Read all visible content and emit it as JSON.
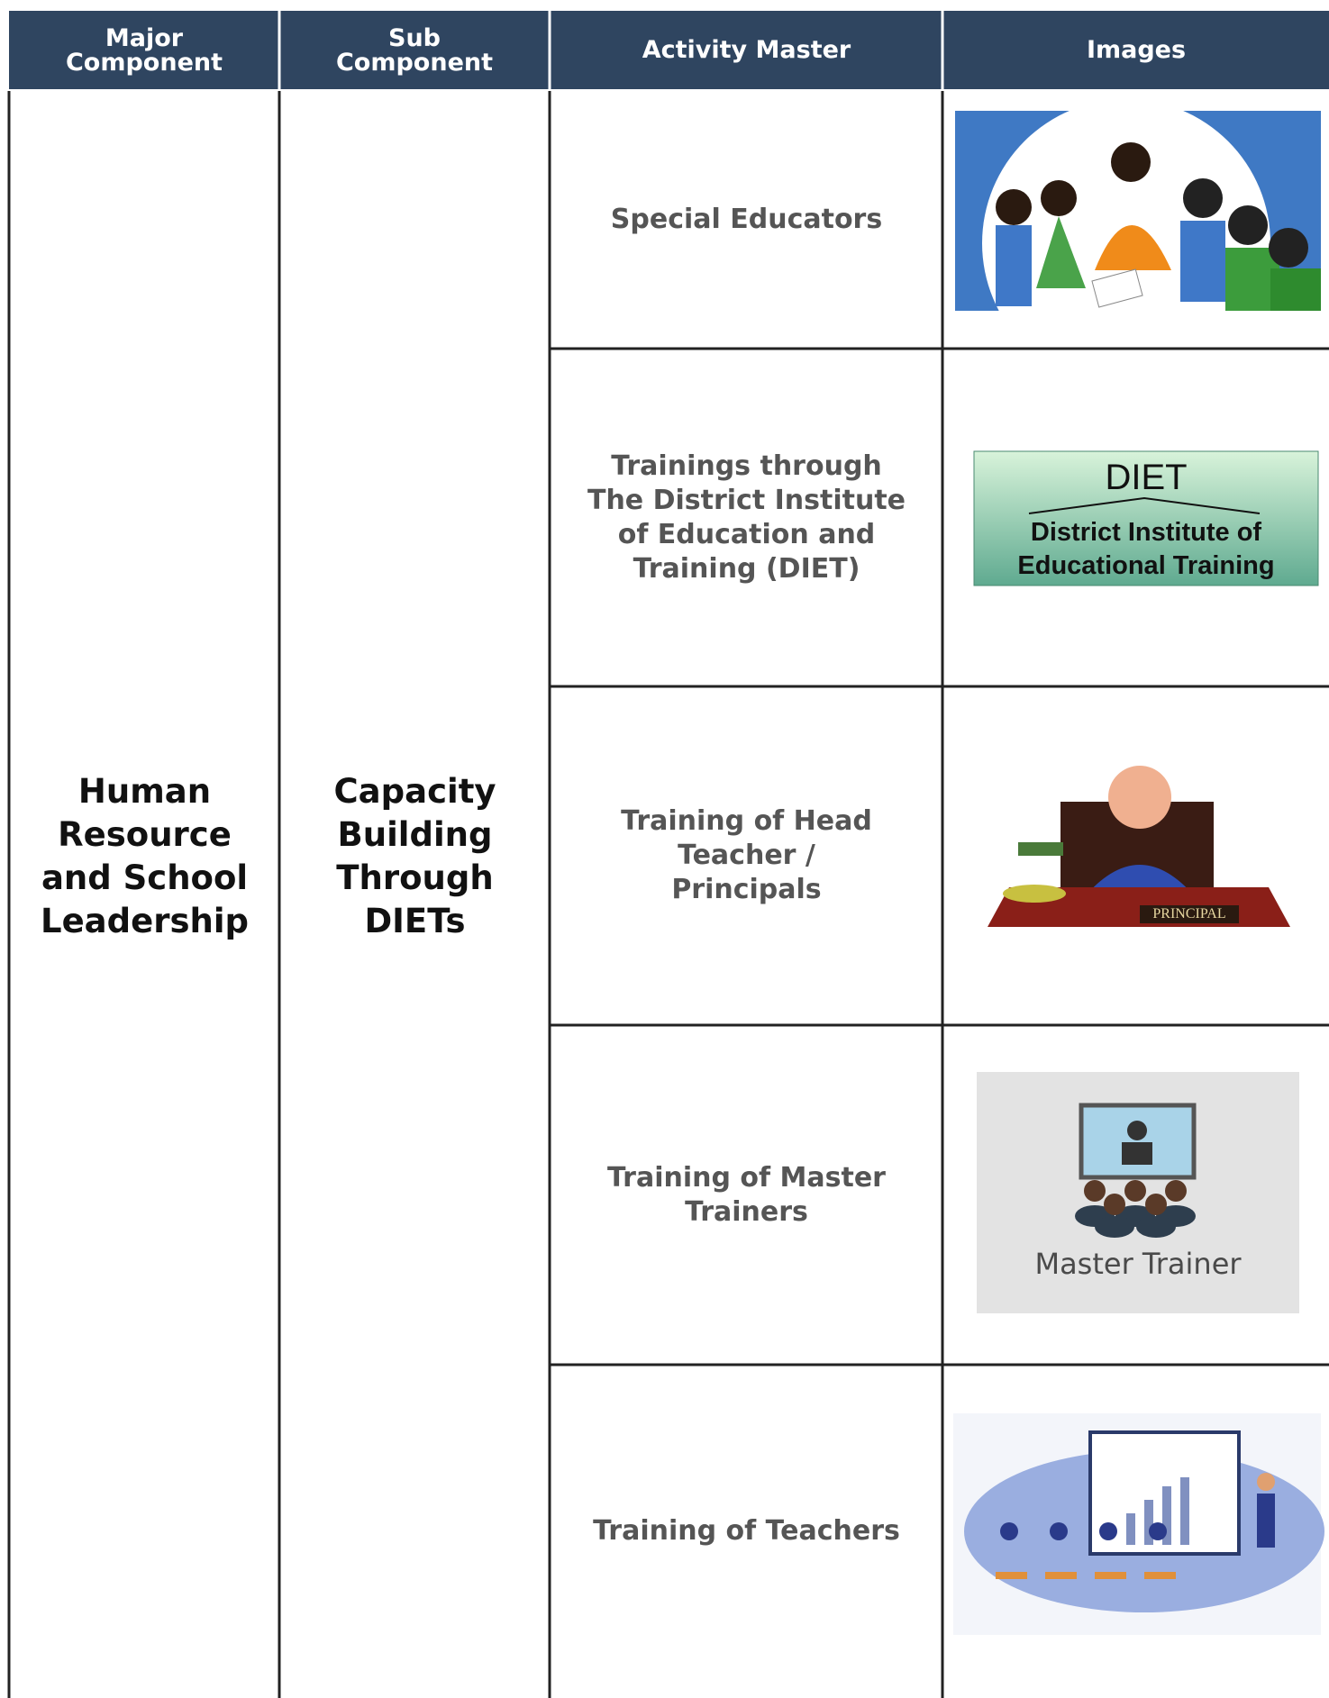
{
  "table": {
    "header": [
      "Major Component",
      "Sub Component",
      "Activity Master",
      "Images"
    ],
    "major_component": "Human Resource and School Leadership",
    "sub_component": "Capacity Building Through DIETs",
    "rows": [
      {
        "activity": "Special Educators"
      },
      {
        "activity": "Trainings through The District Institute of Education and Training (DIET)",
        "image_text": [
          "DIET",
          "District Institute of Educational Training"
        ]
      },
      {
        "activity": "Training of Head Teacher / Principals",
        "image_text": [
          "PRINCIPAL"
        ]
      },
      {
        "activity": "Training of Master Trainers",
        "image_text": [
          "Master Trainer"
        ]
      },
      {
        "activity": "Training of Teachers"
      }
    ]
  }
}
